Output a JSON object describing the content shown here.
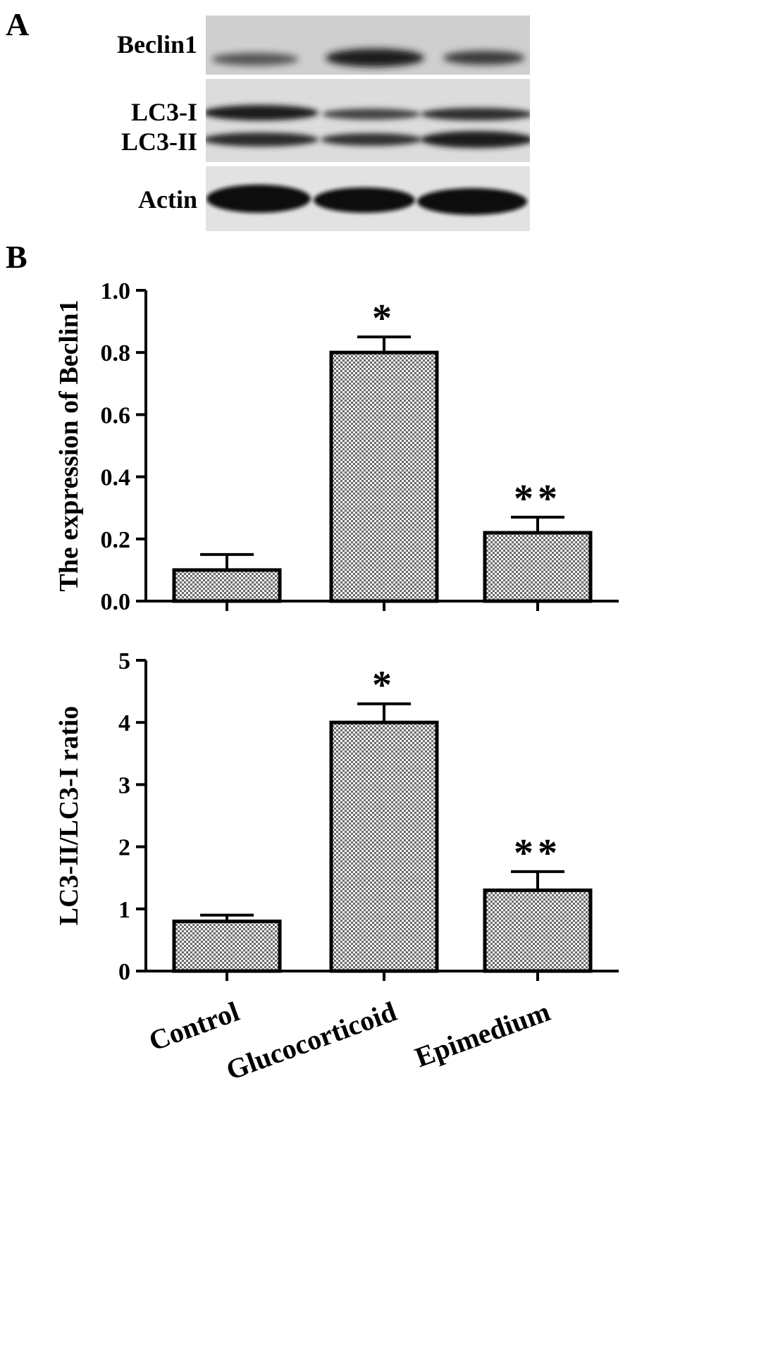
{
  "panels": {
    "a_label": "A",
    "b_label": "B"
  },
  "blot": {
    "beclin_label": "Beclin1",
    "lc3i_label": "LC3-I",
    "lc3ii_label": "LC3-II",
    "actin_label": "Actin"
  },
  "chart_data": [
    {
      "type": "bar",
      "categories": [
        "Control",
        "Glucocorticoid",
        "Epimedium"
      ],
      "values": [
        0.1,
        0.8,
        0.22
      ],
      "errors": [
        0.05,
        0.05,
        0.05
      ],
      "annotations": [
        "",
        "*",
        "**"
      ],
      "title": "",
      "xlabel": "",
      "ylabel": "The expression of Beclin1",
      "ylim": [
        0,
        1.0
      ],
      "yticks": [
        0.0,
        0.2,
        0.4,
        0.6,
        0.8,
        1.0
      ],
      "ytick_labels": [
        "0.0",
        "0.2",
        "0.4",
        "0.6",
        "0.8",
        "1.0"
      ],
      "grid": false
    },
    {
      "type": "bar",
      "categories": [
        "Control",
        "Glucocorticoid",
        "Epimedium"
      ],
      "values": [
        0.8,
        4.0,
        1.3
      ],
      "errors": [
        0.1,
        0.3,
        0.3
      ],
      "annotations": [
        "",
        "*",
        "**"
      ],
      "title": "",
      "xlabel": "",
      "ylabel": "LC3-II/LC3-I ratio",
      "ylim": [
        0,
        5
      ],
      "yticks": [
        0,
        1,
        2,
        3,
        4,
        5
      ],
      "ytick_labels": [
        "0",
        "1",
        "2",
        "3",
        "4",
        "5"
      ],
      "grid": false
    }
  ]
}
